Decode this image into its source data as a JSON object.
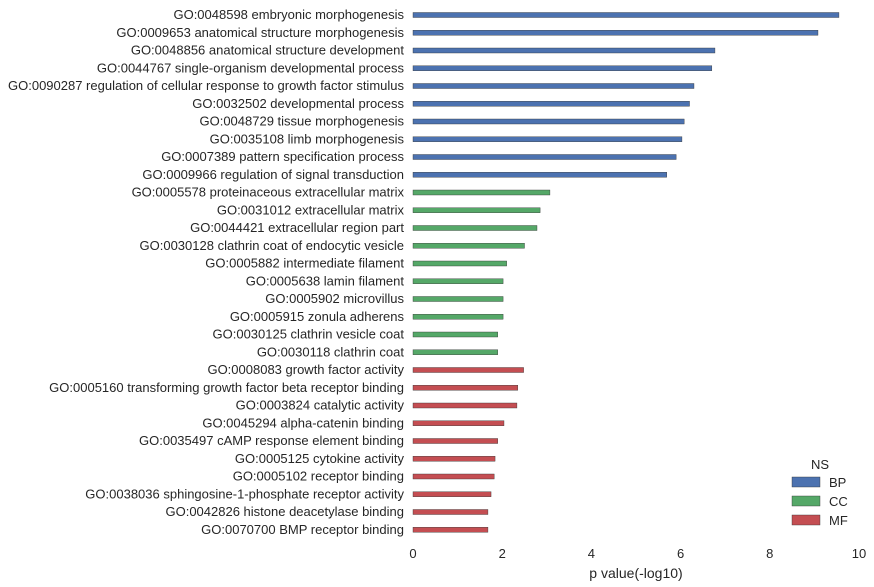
{
  "chart_data": {
    "type": "bar",
    "orientation": "horizontal",
    "xlabel": "p value(-log10)",
    "ylabel": "",
    "xlim": [
      0,
      10
    ],
    "xticks": [
      0,
      2,
      4,
      6,
      8,
      10
    ],
    "grid": false,
    "legend": {
      "title": "NS",
      "position": "bottom-right",
      "entries": [
        {
          "name": "BP",
          "color": "#4c72b0"
        },
        {
          "name": "CC",
          "color": "#55a868"
        },
        {
          "name": "MF",
          "color": "#c44e52"
        }
      ]
    },
    "categories": [
      "GO:0048598 embryonic morphogenesis",
      "GO:0009653 anatomical structure morphogenesis",
      "GO:0048856 anatomical structure development",
      "GO:0044767 single-organism developmental process",
      "GO:0090287 regulation of cellular response to growth factor stimulus",
      "GO:0032502 developmental process",
      "GO:0048729 tissue morphogenesis",
      "GO:0035108 limb morphogenesis",
      "GO:0007389 pattern specification process",
      "GO:0009966 regulation of signal transduction",
      "GO:0005578 proteinaceous extracellular matrix",
      "GO:0031012 extracellular matrix",
      "GO:0044421 extracellular region part",
      "GO:0030128 clathrin coat of endocytic vesicle",
      "GO:0005882 intermediate filament",
      "GO:0005638 lamin filament",
      "GO:0005902 microvillus",
      "GO:0005915 zonula adherens",
      "GO:0030125 clathrin vesicle coat",
      "GO:0030118 clathrin coat",
      "GO:0008083 growth factor activity",
      "GO:0005160 transforming growth factor beta receptor binding",
      "GO:0003824 catalytic activity",
      "GO:0045294 alpha-catenin binding",
      "GO:0035497 cAMP response element binding",
      "GO:0005125 cytokine activity",
      "GO:0005102 receptor binding",
      "GO:0038036 sphingosine-1-phosphate receptor activity",
      "GO:0042826 histone deacetylase binding",
      "GO:0070700 BMP receptor binding"
    ],
    "groups": [
      "BP",
      "BP",
      "BP",
      "BP",
      "BP",
      "BP",
      "BP",
      "BP",
      "BP",
      "BP",
      "CC",
      "CC",
      "CC",
      "CC",
      "CC",
      "CC",
      "CC",
      "CC",
      "CC",
      "CC",
      "MF",
      "MF",
      "MF",
      "MF",
      "MF",
      "MF",
      "MF",
      "MF",
      "MF",
      "MF"
    ],
    "values": [
      9.55,
      9.08,
      6.77,
      6.7,
      6.3,
      6.2,
      6.08,
      6.03,
      5.9,
      5.69,
      3.07,
      2.85,
      2.78,
      2.5,
      2.1,
      2.02,
      2.02,
      2.02,
      1.9,
      1.9,
      2.48,
      2.35,
      2.33,
      2.04,
      1.9,
      1.84,
      1.82,
      1.75,
      1.68,
      1.68
    ]
  }
}
